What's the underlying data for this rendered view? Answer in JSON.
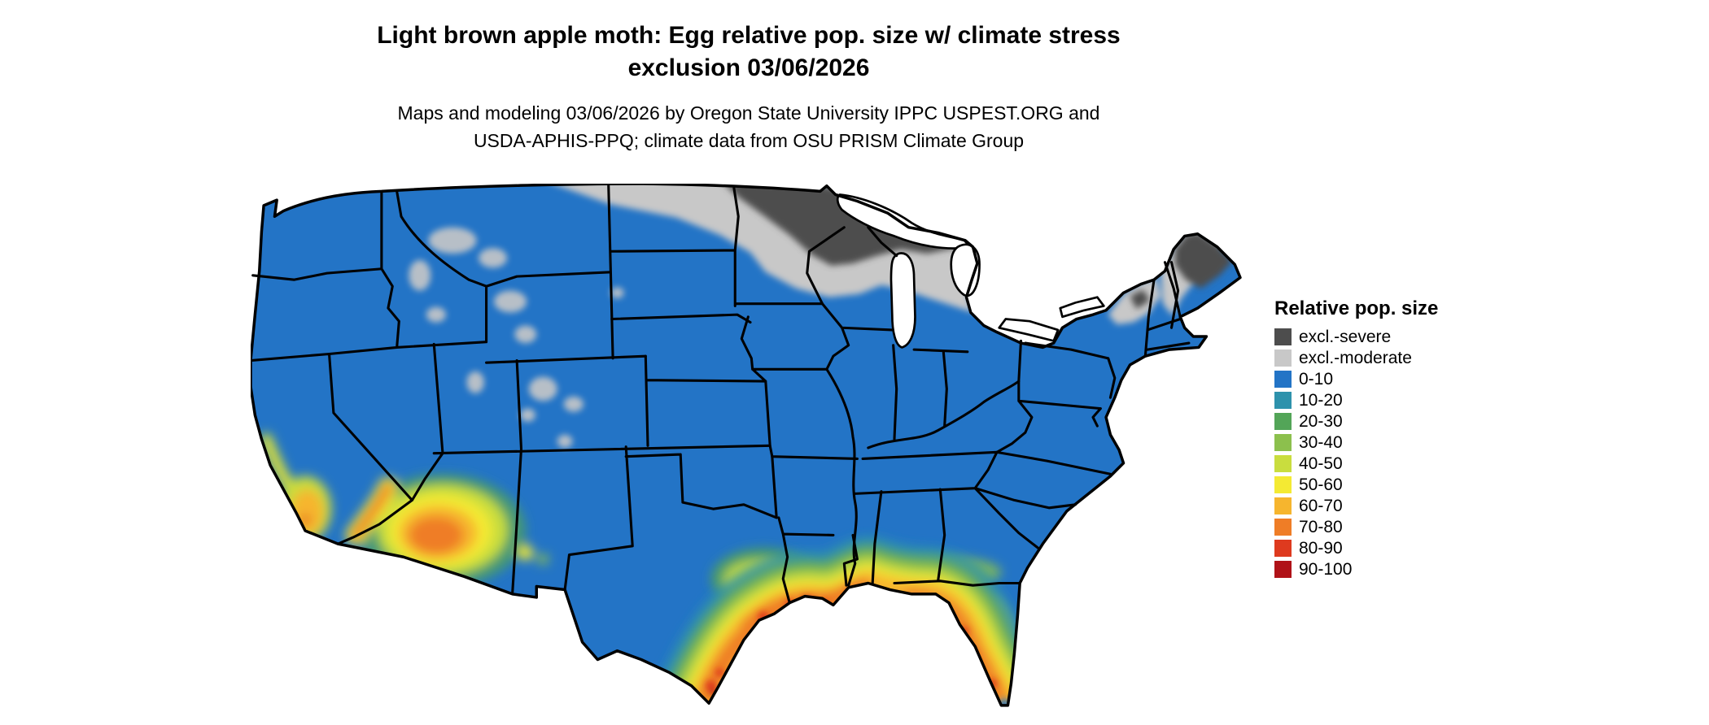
{
  "page": {
    "background": "#ffffff"
  },
  "title": {
    "line1": "Light brown apple moth: Egg relative pop. size w/ climate stress",
    "line2": "exclusion 03/06/2026"
  },
  "subtitle": {
    "line1": "Maps and modeling 03/06/2026 by Oregon State University IPPC USPEST.ORG and",
    "line2": "USDA-APHIS-PPQ; climate data from OSU PRISM Climate Group"
  },
  "legend": {
    "title": "Relative pop. size",
    "items": [
      {
        "key": "exsev",
        "label": "excl.-severe",
        "color": "#4D4D4D"
      },
      {
        "key": "exmod",
        "label": "excl.-moderate",
        "color": "#C8C8C8"
      },
      {
        "key": "b0",
        "label": "0-10",
        "color": "#2374C6"
      },
      {
        "key": "b10",
        "label": "10-20",
        "color": "#2E92AC"
      },
      {
        "key": "b20",
        "label": "20-30",
        "color": "#53A558"
      },
      {
        "key": "b30",
        "label": "30-40",
        "color": "#8CC04D"
      },
      {
        "key": "b40",
        "label": "40-50",
        "color": "#C9DD3E"
      },
      {
        "key": "b50",
        "label": "50-60",
        "color": "#F4EA33"
      },
      {
        "key": "b60",
        "label": "60-70",
        "color": "#F6B52E"
      },
      {
        "key": "b70",
        "label": "70-80",
        "color": "#EF7D26"
      },
      {
        "key": "b80",
        "label": "80-90",
        "color": "#DE3A1F"
      },
      {
        "key": "b90",
        "label": "90-100",
        "color": "#B01218"
      }
    ]
  },
  "map": {
    "type": "choropleth-raster",
    "region": "Continental United States (lower 48 states, state borders shown)",
    "region_patterns": [
      {
        "category": "excl.-severe",
        "areas": "eastern North Dakota, Minnesota, northern Wisconsin, upper Michigan, northern Maine / northern New England"
      },
      {
        "category": "excl.-moderate",
        "areas": "northern band from eastern Montana through the Dakotas, Minnesota, Wisconsin, Michigan; Rocky Mountain high elevations; Adirondacks and interior New England"
      },
      {
        "category": "0-10",
        "areas": "most of the continental interior and coasts"
      },
      {
        "category": "10-20 through 90-100",
        "areas": "warm gradient band along the Gulf Coast from south Texas through Louisiana, Mississippi, Alabama, and Florida; southern Arizona; southern California coast"
      }
    ]
  }
}
